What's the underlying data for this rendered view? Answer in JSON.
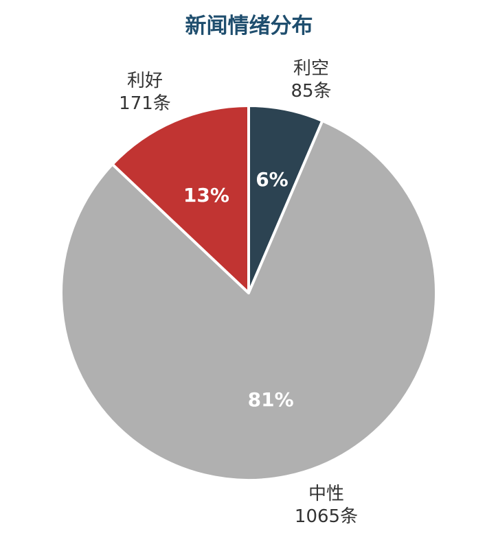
{
  "colors": {
    "title": "#1f4e6e",
    "利空": "#2c4352",
    "中性": "#b0b0b0",
    "利好": "#c13432",
    "slice_border": "#ffffff"
  },
  "chart_data": {
    "type": "pie",
    "title": "新闻情绪分布",
    "start_angle_deg": 0,
    "direction": "clockwise",
    "slices": [
      {
        "name": "利空",
        "count_label": "85条",
        "value": 85,
        "percent_label": "6%",
        "color": "#2c4352"
      },
      {
        "name": "中性",
        "count_label": "1065条",
        "value": 1065,
        "percent_label": "81%",
        "color": "#b0b0b0"
      },
      {
        "name": "利好",
        "count_label": "171条",
        "value": 171,
        "percent_label": "13%",
        "color": "#c13432"
      }
    ]
  }
}
